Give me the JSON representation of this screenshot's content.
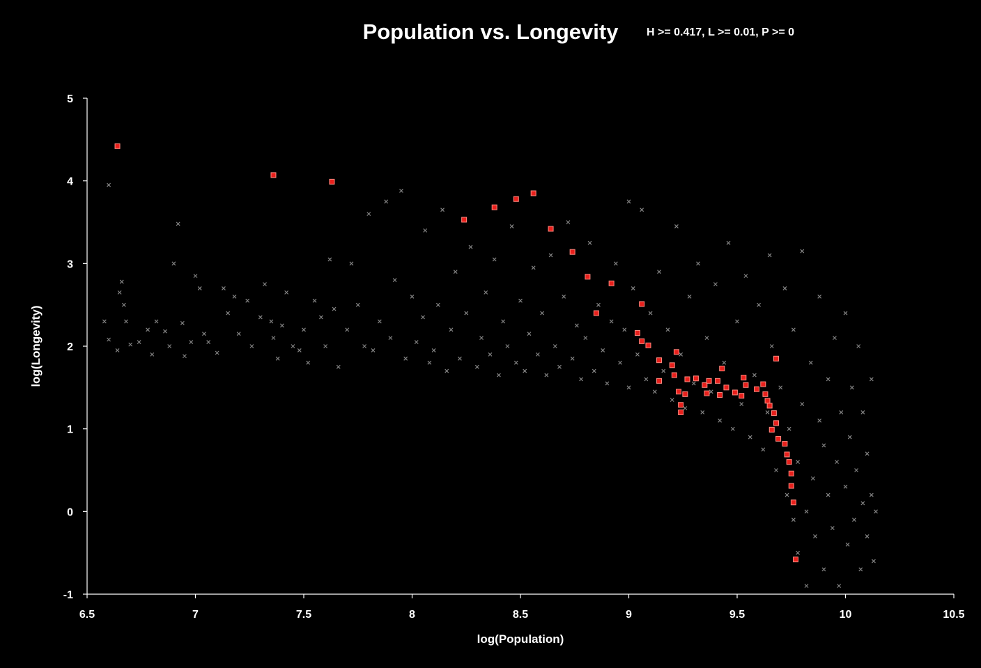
{
  "chart_data": {
    "type": "scatter",
    "title": "Population vs. Longevity",
    "subtitle": "H >= 0.417, L >= 0.01, P >= 0",
    "xlabel": "log(Population)",
    "ylabel": "log(Longevity)",
    "xlim": [
      6.5,
      10.5
    ],
    "ylim": [
      -1,
      5
    ],
    "xticks": [
      "6.5",
      "7",
      "7.5",
      "8",
      "8.5",
      "9",
      "9.5",
      "10",
      "10.5"
    ],
    "yticks": [
      "-1",
      "0",
      "1",
      "2",
      "3",
      "4",
      "5"
    ],
    "grid": false,
    "background": "#000000",
    "series": [
      {
        "marker": "x",
        "color": "#9a9a9a",
        "points": [
          [
            6.58,
            2.3
          ],
          [
            6.6,
            2.08
          ],
          [
            6.6,
            3.95
          ],
          [
            6.64,
            1.95
          ],
          [
            6.65,
            2.65
          ],
          [
            6.66,
            2.78
          ],
          [
            6.67,
            2.5
          ],
          [
            6.68,
            2.3
          ],
          [
            6.7,
            2.02
          ],
          [
            6.74,
            2.05
          ],
          [
            6.78,
            2.2
          ],
          [
            6.8,
            1.9
          ],
          [
            6.82,
            2.3
          ],
          [
            6.86,
            2.18
          ],
          [
            6.88,
            2.0
          ],
          [
            6.9,
            3.0
          ],
          [
            6.92,
            3.48
          ],
          [
            6.94,
            2.28
          ],
          [
            6.95,
            1.88
          ],
          [
            6.98,
            2.05
          ],
          [
            7.0,
            2.85
          ],
          [
            7.02,
            2.7
          ],
          [
            7.04,
            2.15
          ],
          [
            7.06,
            2.05
          ],
          [
            7.1,
            1.92
          ],
          [
            7.13,
            2.7
          ],
          [
            7.15,
            2.4
          ],
          [
            7.18,
            2.6
          ],
          [
            7.2,
            2.15
          ],
          [
            7.24,
            2.55
          ],
          [
            7.26,
            2.0
          ],
          [
            7.3,
            2.35
          ],
          [
            7.32,
            2.75
          ],
          [
            7.35,
            2.3
          ],
          [
            7.36,
            2.1
          ],
          [
            7.38,
            1.85
          ],
          [
            7.4,
            2.25
          ],
          [
            7.42,
            2.65
          ],
          [
            7.45,
            2.0
          ],
          [
            7.48,
            1.95
          ],
          [
            7.5,
            2.2
          ],
          [
            7.52,
            1.8
          ],
          [
            7.55,
            2.55
          ],
          [
            7.58,
            2.35
          ],
          [
            7.6,
            2.0
          ],
          [
            7.62,
            3.05
          ],
          [
            7.64,
            2.45
          ],
          [
            7.66,
            1.75
          ],
          [
            7.7,
            2.2
          ],
          [
            7.72,
            3.0
          ],
          [
            7.75,
            2.5
          ],
          [
            7.78,
            2.0
          ],
          [
            7.8,
            3.6
          ],
          [
            7.82,
            1.95
          ],
          [
            7.85,
            2.3
          ],
          [
            7.88,
            3.75
          ],
          [
            7.9,
            2.1
          ],
          [
            7.92,
            2.8
          ],
          [
            7.95,
            3.88
          ],
          [
            7.97,
            1.85
          ],
          [
            8.0,
            2.6
          ],
          [
            8.02,
            2.05
          ],
          [
            8.05,
            2.35
          ],
          [
            8.06,
            3.4
          ],
          [
            8.08,
            1.8
          ],
          [
            8.1,
            1.95
          ],
          [
            8.12,
            2.5
          ],
          [
            8.14,
            3.65
          ],
          [
            8.16,
            1.7
          ],
          [
            8.18,
            2.2
          ],
          [
            8.2,
            2.9
          ],
          [
            8.22,
            1.85
          ],
          [
            8.25,
            2.4
          ],
          [
            8.27,
            3.2
          ],
          [
            8.3,
            1.75
          ],
          [
            8.32,
            2.1
          ],
          [
            8.34,
            2.65
          ],
          [
            8.36,
            1.9
          ],
          [
            8.38,
            3.05
          ],
          [
            8.4,
            1.65
          ],
          [
            8.42,
            2.3
          ],
          [
            8.44,
            2.0
          ],
          [
            8.46,
            3.45
          ],
          [
            8.48,
            1.8
          ],
          [
            8.5,
            2.55
          ],
          [
            8.52,
            1.7
          ],
          [
            8.54,
            2.15
          ],
          [
            8.56,
            2.95
          ],
          [
            8.58,
            1.9
          ],
          [
            8.6,
            2.4
          ],
          [
            8.62,
            1.65
          ],
          [
            8.64,
            3.1
          ],
          [
            8.66,
            2.0
          ],
          [
            8.68,
            1.75
          ],
          [
            8.7,
            2.6
          ],
          [
            8.72,
            3.5
          ],
          [
            8.74,
            1.85
          ],
          [
            8.76,
            2.25
          ],
          [
            8.78,
            1.6
          ],
          [
            8.8,
            2.1
          ],
          [
            8.82,
            3.25
          ],
          [
            8.84,
            1.7
          ],
          [
            8.86,
            2.5
          ],
          [
            8.88,
            1.95
          ],
          [
            8.9,
            1.55
          ],
          [
            8.92,
            2.3
          ],
          [
            8.94,
            3.0
          ],
          [
            8.96,
            1.8
          ],
          [
            8.98,
            2.2
          ],
          [
            9.0,
            1.5
          ],
          [
            9.0,
            3.75
          ],
          [
            9.02,
            2.7
          ],
          [
            9.04,
            1.9
          ],
          [
            9.06,
            3.65
          ],
          [
            9.08,
            1.6
          ],
          [
            9.1,
            2.4
          ],
          [
            9.12,
            1.45
          ],
          [
            9.14,
            2.9
          ],
          [
            9.16,
            1.7
          ],
          [
            9.18,
            2.2
          ],
          [
            9.2,
            1.35
          ],
          [
            9.22,
            3.45
          ],
          [
            9.24,
            1.9
          ],
          [
            9.26,
            1.25
          ],
          [
            9.28,
            2.6
          ],
          [
            9.3,
            1.55
          ],
          [
            9.32,
            3.0
          ],
          [
            9.34,
            1.2
          ],
          [
            9.36,
            2.1
          ],
          [
            9.38,
            1.45
          ],
          [
            9.4,
            2.75
          ],
          [
            9.42,
            1.1
          ],
          [
            9.44,
            1.8
          ],
          [
            9.46,
            3.25
          ],
          [
            9.48,
            1.0
          ],
          [
            9.5,
            2.3
          ],
          [
            9.52,
            1.3
          ],
          [
            9.54,
            2.85
          ],
          [
            9.56,
            0.9
          ],
          [
            9.58,
            1.65
          ],
          [
            9.6,
            2.5
          ],
          [
            9.62,
            0.75
          ],
          [
            9.64,
            1.2
          ],
          [
            9.65,
            3.1
          ],
          [
            9.66,
            2.0
          ],
          [
            9.68,
            0.5
          ],
          [
            9.7,
            1.5
          ],
          [
            9.72,
            2.7
          ],
          [
            9.73,
            0.2
          ],
          [
            9.74,
            1.0
          ],
          [
            9.76,
            -0.1
          ],
          [
            9.76,
            2.2
          ],
          [
            9.78,
            0.6
          ],
          [
            9.78,
            -0.5
          ],
          [
            9.8,
            1.3
          ],
          [
            9.8,
            3.15
          ],
          [
            9.82,
            0.0
          ],
          [
            9.82,
            -0.9
          ],
          [
            9.84,
            1.8
          ],
          [
            9.85,
            0.4
          ],
          [
            9.86,
            -0.3
          ],
          [
            9.88,
            1.1
          ],
          [
            9.88,
            2.6
          ],
          [
            9.9,
            0.8
          ],
          [
            9.9,
            -0.7
          ],
          [
            9.92,
            0.2
          ],
          [
            9.92,
            1.6
          ],
          [
            9.94,
            -0.2
          ],
          [
            9.95,
            2.1
          ],
          [
            9.96,
            0.6
          ],
          [
            9.97,
            -0.9
          ],
          [
            9.98,
            1.2
          ],
          [
            10.0,
            0.3
          ],
          [
            10.0,
            2.4
          ],
          [
            10.01,
            -0.4
          ],
          [
            10.02,
            0.9
          ],
          [
            10.03,
            1.5
          ],
          [
            10.04,
            -0.1
          ],
          [
            10.05,
            0.5
          ],
          [
            10.06,
            2.0
          ],
          [
            10.07,
            -0.7
          ],
          [
            10.08,
            0.1
          ],
          [
            10.08,
            1.2
          ],
          [
            10.1,
            0.7
          ],
          [
            10.1,
            -0.3
          ],
          [
            10.12,
            0.2
          ],
          [
            10.12,
            1.6
          ],
          [
            10.13,
            -0.6
          ],
          [
            10.14,
            0.0
          ]
        ]
      },
      {
        "marker": "square",
        "color": "#e8201c",
        "points": [
          [
            6.64,
            4.42
          ],
          [
            7.36,
            4.07
          ],
          [
            7.63,
            3.99
          ],
          [
            8.24,
            3.53
          ],
          [
            8.38,
            3.68
          ],
          [
            8.48,
            3.78
          ],
          [
            8.56,
            3.85
          ],
          [
            8.64,
            3.42
          ],
          [
            8.74,
            3.14
          ],
          [
            8.81,
            2.84
          ],
          [
            8.92,
            2.76
          ],
          [
            8.85,
            2.4
          ],
          [
            9.06,
            2.51
          ],
          [
            9.04,
            2.16
          ],
          [
            9.06,
            2.06
          ],
          [
            9.09,
            2.01
          ],
          [
            9.22,
            1.93
          ],
          [
            9.14,
            1.83
          ],
          [
            9.2,
            1.77
          ],
          [
            9.43,
            1.73
          ],
          [
            9.68,
            1.85
          ],
          [
            9.21,
            1.65
          ],
          [
            9.14,
            1.58
          ],
          [
            9.27,
            1.6
          ],
          [
            9.31,
            1.61
          ],
          [
            9.35,
            1.53
          ],
          [
            9.37,
            1.58
          ],
          [
            9.41,
            1.58
          ],
          [
            9.53,
            1.62
          ],
          [
            9.54,
            1.53
          ],
          [
            9.62,
            1.54
          ],
          [
            9.45,
            1.5
          ],
          [
            9.49,
            1.44
          ],
          [
            9.52,
            1.4
          ],
          [
            9.59,
            1.48
          ],
          [
            9.63,
            1.42
          ],
          [
            9.23,
            1.45
          ],
          [
            9.26,
            1.42
          ],
          [
            9.36,
            1.43
          ],
          [
            9.42,
            1.41
          ],
          [
            9.64,
            1.34
          ],
          [
            9.65,
            1.28
          ],
          [
            9.24,
            1.29
          ],
          [
            9.24,
            1.2
          ],
          [
            9.67,
            1.19
          ],
          [
            9.68,
            1.07
          ],
          [
            9.66,
            0.99
          ],
          [
            9.69,
            0.88
          ],
          [
            9.72,
            0.82
          ],
          [
            9.73,
            0.69
          ],
          [
            9.74,
            0.6
          ],
          [
            9.75,
            0.46
          ],
          [
            9.75,
            0.31
          ],
          [
            9.76,
            0.11
          ],
          [
            9.77,
            -0.58
          ]
        ]
      }
    ]
  }
}
